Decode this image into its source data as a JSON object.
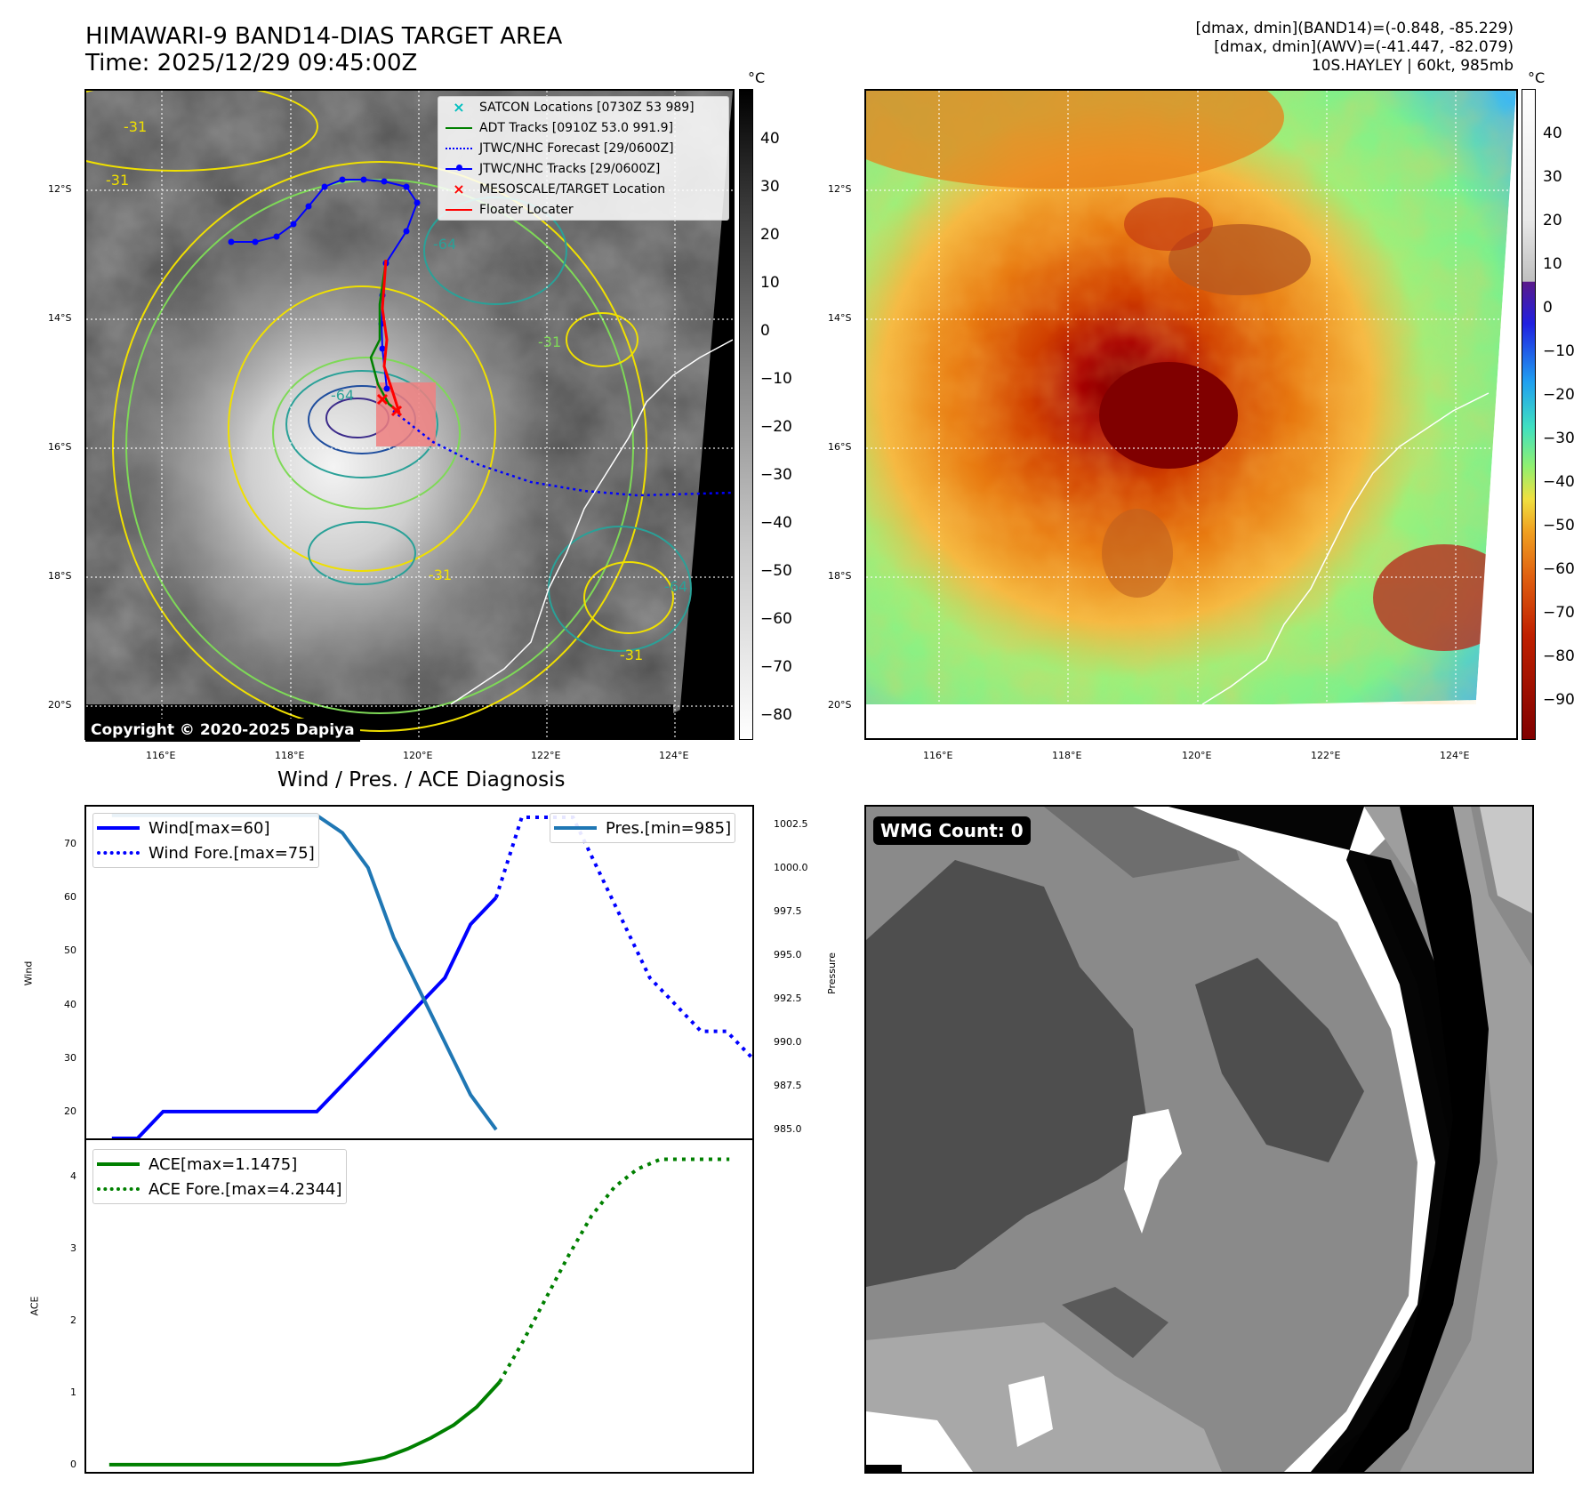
{
  "header": {
    "title_line1": "HIMAWARI-9 BAND14-DIAS TARGET AREA",
    "title_line2": "Time: 2025/12/29 09:45:00Z",
    "info_line1": "[dmax, dmin](BAND14)=(-0.848, -85.229)",
    "info_line2": "[dmax, dmin](AWV)=(-41.447, -82.079)",
    "info_line3": "10S.HAYLEY | 60kt, 985mb"
  },
  "map": {
    "lat_labels": [
      "12°S",
      "14°S",
      "16°S",
      "18°S",
      "20°S"
    ],
    "lon_labels": [
      "116°E",
      "118°E",
      "120°E",
      "122°E",
      "124°E"
    ],
    "contour_labels": [
      "-31",
      "-31",
      "-64",
      "-64",
      "-31",
      "-31",
      "-64",
      "-31"
    ],
    "copyright": "Copyright © 2020-2025 Dapiya"
  },
  "legend": {
    "items": [
      {
        "label": "SATCON Locations [0730Z 53 989]",
        "color": "#00bfbf",
        "symbol": "x-cyan"
      },
      {
        "label": "ADT Tracks [0910Z 53.0 991.9]",
        "color": "#008000",
        "symbol": "line-green"
      },
      {
        "label": "JTWC/NHC Forecast [29/0600Z]",
        "color": "#0000ff",
        "symbol": "dotted-blue"
      },
      {
        "label": "JTWC/NHC Tracks [29/0600Z]",
        "color": "#0000ff",
        "symbol": "line-dot-blue"
      },
      {
        "label": "MESOSCALE/TARGET Location",
        "color": "#ff0000",
        "symbol": "x-red"
      },
      {
        "label": "Floater Locater",
        "color": "#ff0000",
        "symbol": "line-red"
      }
    ]
  },
  "colorbar_left": {
    "unit": "°C",
    "ticks": [
      "40",
      "30",
      "20",
      "10",
      "0",
      "−10",
      "−20",
      "−30",
      "−40",
      "−50",
      "−60",
      "−70",
      "−80"
    ]
  },
  "colorbar_right": {
    "unit": "°C",
    "ticks": [
      "40",
      "30",
      "20",
      "10",
      "0",
      "−10",
      "−20",
      "−30",
      "−40",
      "−50",
      "−60",
      "−70",
      "−80",
      "−90"
    ]
  },
  "diagnosis": {
    "title": "Wind / Pres. / ACE Diagnosis",
    "wind_ylabel": "Wind",
    "pres_ylabel": "Pressure",
    "ace_ylabel": "ACE",
    "wind_legend": [
      "Wind[max=60]",
      "Wind Fore.[max=75]"
    ],
    "pres_legend": "Pres.[min=985]",
    "ace_legend": [
      "ACE[max=1.1475]",
      "ACE Fore.[max=4.2344]"
    ]
  },
  "wmg": {
    "label": "WMG Count: 0"
  },
  "chart_data": [
    {
      "type": "line",
      "title": "Wind / Pres. / ACE Diagnosis",
      "ylabel": "Wind",
      "ylim": [
        15,
        77
      ],
      "yticks": [
        20,
        30,
        40,
        50,
        60,
        70
      ],
      "xlim": [
        0,
        26
      ],
      "series": [
        {
          "name": "Wind[max=60]",
          "style": "solid",
          "color": "#0000ff",
          "x": [
            1,
            2,
            3,
            4,
            5,
            6,
            7,
            8,
            9,
            10,
            11,
            12,
            13,
            14,
            15,
            16
          ],
          "values": [
            15,
            15,
            20,
            20,
            20,
            20,
            20,
            20,
            20,
            25,
            30,
            35,
            40,
            45,
            55,
            60
          ]
        },
        {
          "name": "Wind Fore.[max=75]",
          "style": "dotted",
          "color": "#0000ff",
          "x": [
            16,
            17,
            18,
            19,
            20,
            21,
            22,
            23,
            24,
            25,
            26
          ],
          "values": [
            60,
            75,
            75,
            75,
            65,
            55,
            45,
            40,
            35,
            35,
            30
          ]
        }
      ]
    },
    {
      "type": "line",
      "ylabel": "Pressure",
      "ylim": [
        984.5,
        1003.5
      ],
      "yticks": [
        985.0,
        987.5,
        990.0,
        992.5,
        995.0,
        997.5,
        1000.0,
        1002.5
      ],
      "xlim": [
        0,
        26
      ],
      "series": [
        {
          "name": "Pres.[min=985]",
          "style": "solid",
          "color": "#1f77b4",
          "x": [
            1,
            2,
            3,
            4,
            5,
            6,
            7,
            8,
            9,
            10,
            11,
            12,
            13,
            14,
            15,
            16
          ],
          "values": [
            1003,
            1003,
            1003,
            1003,
            1003,
            1003,
            1003,
            1003,
            1003,
            1002,
            1000,
            996,
            993,
            990,
            987,
            985
          ]
        }
      ]
    },
    {
      "type": "line",
      "ylabel": "ACE",
      "ylim": [
        -0.1,
        4.5
      ],
      "yticks": [
        0,
        1,
        2,
        3,
        4
      ],
      "xlim": [
        0,
        29
      ],
      "series": [
        {
          "name": "ACE[max=1.1475]",
          "style": "solid",
          "color": "#008000",
          "x": [
            1,
            2,
            3,
            4,
            5,
            6,
            7,
            8,
            9,
            10,
            11,
            12,
            13,
            14,
            15,
            16,
            17,
            18
          ],
          "values": [
            0,
            0,
            0,
            0,
            0,
            0,
            0,
            0,
            0,
            0,
            0,
            0.04,
            0.1,
            0.22,
            0.37,
            0.55,
            0.8,
            1.1475
          ]
        },
        {
          "name": "ACE Fore.[max=4.2344]",
          "style": "dotted",
          "color": "#008000",
          "x": [
            18,
            19,
            20,
            21,
            22,
            23,
            24,
            25,
            26,
            27,
            28
          ],
          "values": [
            1.1475,
            1.7,
            2.3,
            2.9,
            3.45,
            3.85,
            4.1,
            4.2344,
            4.2344,
            4.2344,
            4.2344
          ]
        }
      ]
    }
  ]
}
